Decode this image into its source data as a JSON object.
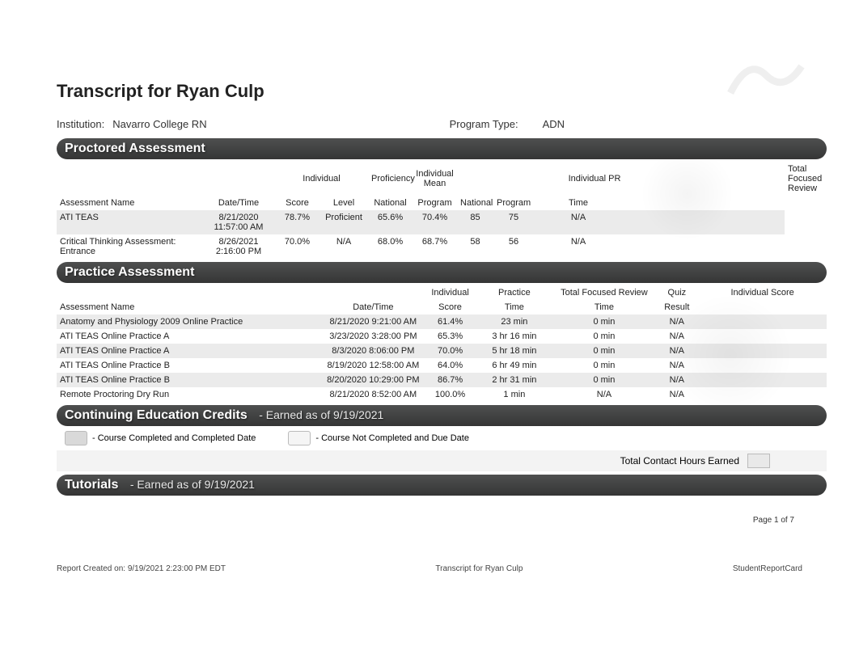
{
  "title": "Transcript for Ryan  Culp",
  "institution_label": "Institution:",
  "institution": "Navarro College RN",
  "program_type_label": "Program Type:",
  "program_type": "ADN",
  "sections": {
    "proctored": {
      "heading": "Proctored Assessment",
      "header_top": [
        "Individual",
        "Proficiency",
        "Individual Mean",
        "",
        "Individual PR",
        "",
        "Total Focused Review",
        "",
        "Individual Score"
      ],
      "header_bottom": [
        "Assessment Name",
        "Date/Time",
        "Score",
        "Level",
        "National",
        "Program",
        "National",
        "Program",
        "Time",
        "",
        ""
      ],
      "rows": [
        [
          "ATI TEAS",
          "8/21/2020 11:57:00 AM",
          "78.7%",
          "Proficient",
          "65.6%",
          "70.4%",
          "85",
          "75",
          "N/A",
          "",
          ""
        ],
        [
          "Critical Thinking Assessment: Entrance",
          "8/26/2021 2:16:00 PM",
          "70.0%",
          "N/A",
          "68.0%",
          "68.7%",
          "58",
          "56",
          "N/A",
          "",
          ""
        ]
      ],
      "col_widths": [
        "180px",
        "90px",
        "55px",
        "60px",
        "55px",
        "55px",
        "45px",
        "50px",
        "110px",
        "40px",
        "160px"
      ],
      "top_colspans": [
        2,
        1,
        1,
        2,
        0,
        2,
        0,
        1,
        1,
        1
      ],
      "top_col_start": 2
    },
    "practice": {
      "heading": "Practice Assessment",
      "header_top": [
        "Individual",
        "Practice",
        "Total Focused Review",
        "Quiz",
        "Individual Score"
      ],
      "header_bottom": [
        "Assessment Name",
        "Date/Time",
        "Score",
        "Time",
        "Time",
        "Result",
        ""
      ],
      "rows": [
        [
          "Anatomy and Physiology 2009 Online Practice",
          "8/21/2020 9:21:00 AM",
          "61.4%",
          "23 min",
          "0 min",
          "N/A",
          ""
        ],
        [
          "ATI TEAS Online Practice A",
          "3/23/2020 3:28:00 PM",
          "65.3%",
          "3 hr 16 min",
          "0 min",
          "N/A",
          ""
        ],
        [
          "ATI TEAS Online Practice A",
          "8/3/2020 8:06:00 PM",
          "70.0%",
          "5 hr 18 min",
          "0 min",
          "N/A",
          ""
        ],
        [
          "ATI TEAS Online Practice B",
          "8/19/2020 12:58:00 AM",
          "64.0%",
          "6 hr 49 min",
          "0 min",
          "N/A",
          ""
        ],
        [
          "ATI TEAS Online Practice B",
          "8/20/2020 10:29:00 PM",
          "86.7%",
          "2 hr 31 min",
          "0 min",
          "N/A",
          ""
        ],
        [
          "Remote Proctoring Dry Run",
          "8/21/2020 8:52:00 AM",
          "100.0%",
          "1 min",
          "N/A",
          "N/A",
          ""
        ]
      ],
      "col_widths": [
        "310px",
        "120px",
        "60px",
        "90px",
        "120px",
        "50px",
        "150px"
      ]
    },
    "cec": {
      "heading": "Continuing Education Credits",
      "suffix": "- Earned as of 9/19/2021",
      "legend_completed": "- Course Completed and Completed Date",
      "legend_not_completed": "- Course Not Completed and Due Date",
      "total_label": "Total Contact Hours Earned"
    },
    "tutorials": {
      "heading": "Tutorials",
      "suffix": "- Earned as of 9/19/2021"
    }
  },
  "page_number": "Page 1 of 7",
  "footer": {
    "left": "Report Created on: 9/19/2021 2:23:00 PM EDT",
    "center": "Transcript for Ryan  Culp",
    "right": "StudentReportCard"
  },
  "style": {
    "section_bg": "#3c3c3c",
    "row_alt_bg": "#ebebeb",
    "text_color": "#222222",
    "title_fontsize": 22,
    "body_fontsize": 11
  }
}
